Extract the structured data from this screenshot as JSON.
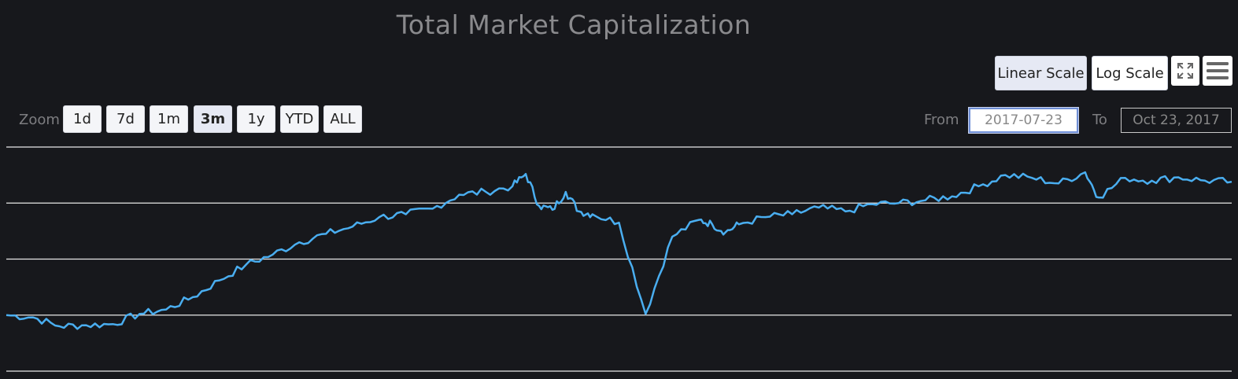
{
  "chart_title": "Total Market Capitalization",
  "scale_buttons": {
    "linear": "Linear Scale",
    "log": "Log Scale"
  },
  "icons": {
    "fullscreen": "fullscreen-icon",
    "menu": "menu-icon"
  },
  "zoom": {
    "label": "Zoom",
    "buttons": [
      "1d",
      "7d",
      "1m",
      "3m",
      "1y",
      "YTD",
      "ALL"
    ],
    "active": "3m"
  },
  "range": {
    "from_label": "From",
    "from_value": "2017-07-23",
    "to_label": "To",
    "to_value": "Oct 23, 2017"
  },
  "colors": {
    "background": "#17181c",
    "line": "#4aaef0",
    "grid": "#e8e8e8"
  },
  "chart_data": {
    "type": "line",
    "title": "Total Market Capitalization",
    "xlabel": "",
    "ylabel": "",
    "x_range": [
      "2017-07-23",
      "2017-10-23"
    ],
    "ylim": [
      0,
      4
    ],
    "grid": true,
    "series": [
      {
        "x": [
          "2017-07-23",
          "2017-07-25",
          "2017-07-27",
          "2017-07-29",
          "2017-07-31",
          "2017-08-02",
          "2017-08-04",
          "2017-08-06",
          "2017-08-08",
          "2017-08-10",
          "2017-08-12",
          "2017-08-14",
          "2017-08-16",
          "2017-08-18",
          "2017-08-20",
          "2017-08-22",
          "2017-08-24",
          "2017-08-26",
          "2017-08-28",
          "2017-08-30",
          "2017-08-31",
          "2017-09-01",
          "2017-09-02",
          "2017-09-03",
          "2017-09-04",
          "2017-09-05",
          "2017-09-07",
          "2017-09-09",
          "2017-09-11",
          "2017-09-13",
          "2017-09-14",
          "2017-09-15",
          "2017-09-16",
          "2017-09-18",
          "2017-09-20",
          "2017-09-22",
          "2017-09-24",
          "2017-09-26",
          "2017-09-28",
          "2017-09-30",
          "2017-10-02",
          "2017-10-04",
          "2017-10-06",
          "2017-10-08",
          "2017-10-10",
          "2017-10-12",
          "2017-10-13",
          "2017-10-15",
          "2017-10-17",
          "2017-10-19",
          "2017-10-21",
          "2017-10-23"
        ],
        "values": [
          1.0,
          0.96,
          0.8,
          0.82,
          0.84,
          1.02,
          1.1,
          1.32,
          1.62,
          1.9,
          2.08,
          2.3,
          2.45,
          2.58,
          2.75,
          2.8,
          2.9,
          3.15,
          3.2,
          3.3,
          3.52,
          2.95,
          2.88,
          3.2,
          2.85,
          2.8,
          2.65,
          1.02,
          2.4,
          2.7,
          2.62,
          2.48,
          2.62,
          2.75,
          2.8,
          2.92,
          2.85,
          2.98,
          3.0,
          3.05,
          3.12,
          3.3,
          3.5,
          3.45,
          3.35,
          3.55,
          3.1,
          3.45,
          3.4,
          3.46,
          3.4,
          3.38
        ]
      }
    ]
  }
}
